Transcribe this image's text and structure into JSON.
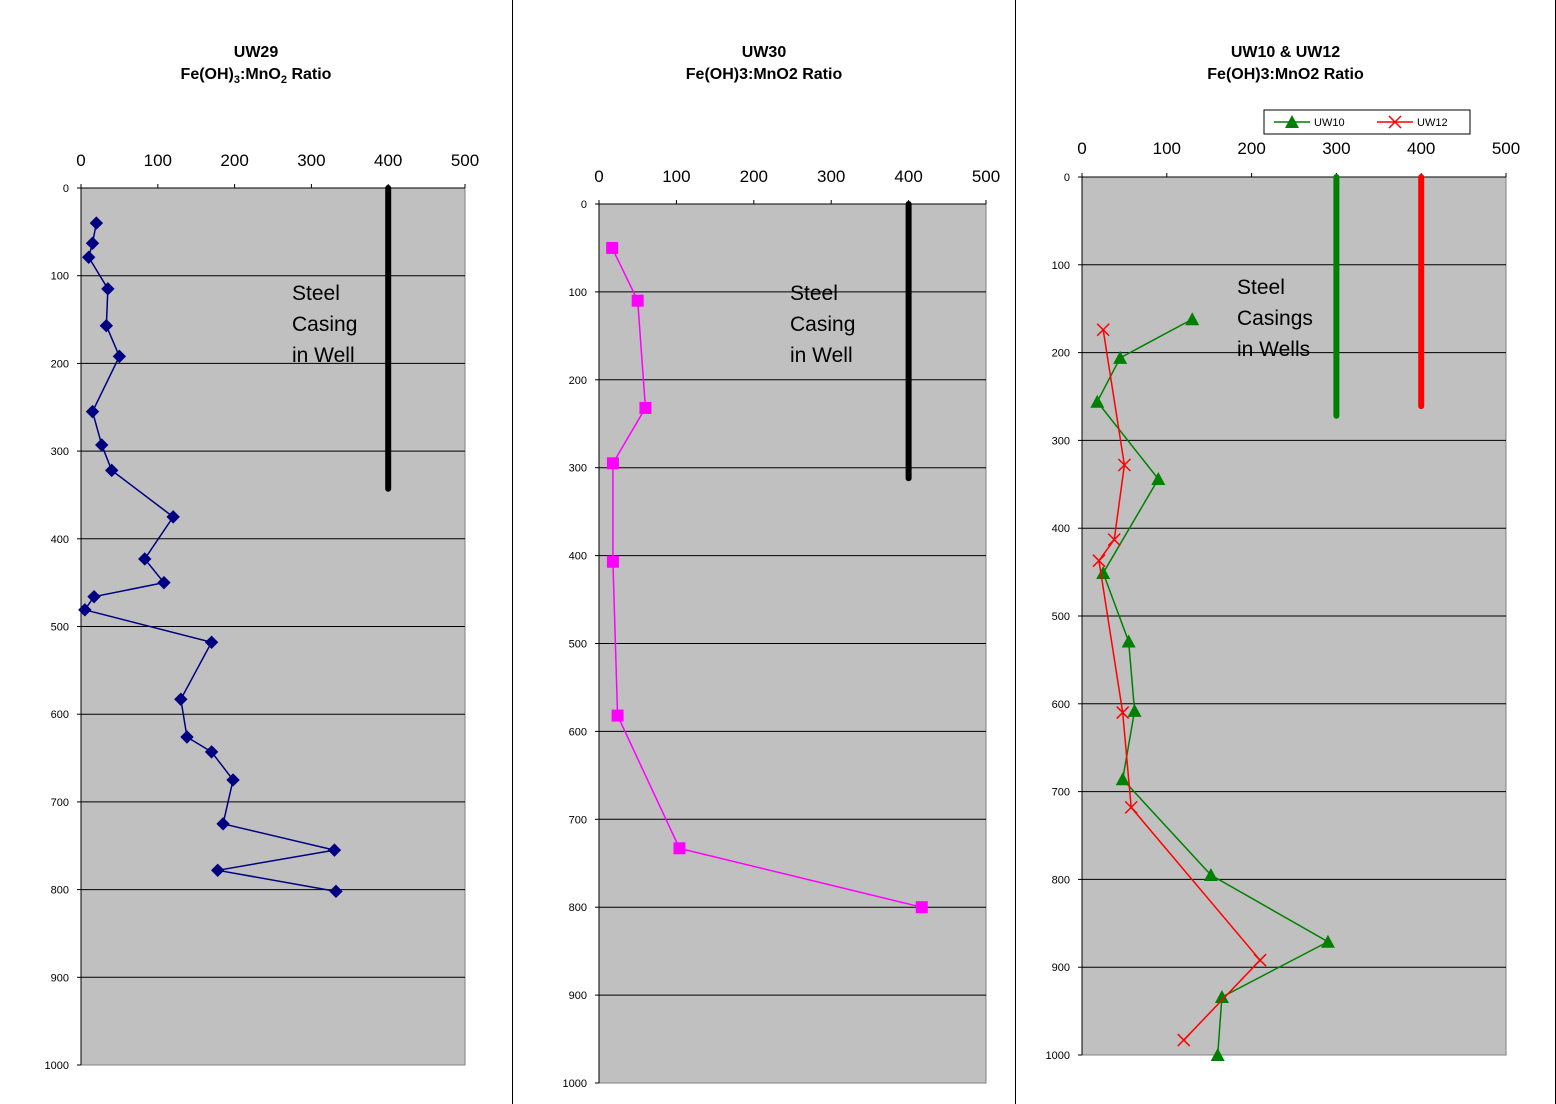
{
  "colors": {
    "plot_bg": "#c0c0c0",
    "uw29": "#000080",
    "uw30": "#ff00ff",
    "uw10": "#008000",
    "uw12": "#ff0000",
    "casing": "#000000"
  },
  "chart_data": [
    {
      "type": "line",
      "title_line1": "UW29",
      "title_line2_parts": [
        "Fe(OH)",
        "3",
        ":MnO",
        "2",
        " Ratio"
      ],
      "xlim": [
        0,
        500
      ],
      "ylim": [
        0,
        1000
      ],
      "x_ticks": [
        "0",
        "100",
        "200",
        "300",
        "400",
        "500"
      ],
      "y_ticks": [
        "0",
        "100",
        "200",
        "300",
        "400",
        "500",
        "600",
        "700",
        "800",
        "900",
        "1000"
      ],
      "y_inverted": true,
      "grid": "horizontal",
      "annotation": [
        "Steel",
        "Casing",
        "in Well"
      ],
      "series": [
        {
          "marker": "diamond",
          "color": "#000080",
          "points": [
            [
              20,
              40
            ],
            [
              15,
              63
            ],
            [
              10,
              79
            ],
            [
              35,
              115
            ],
            [
              33,
              157
            ],
            [
              50,
              192
            ],
            [
              15,
              255
            ],
            [
              27,
              293
            ],
            [
              40,
              322
            ],
            [
              120,
              375
            ],
            [
              83,
              423
            ],
            [
              108,
              450
            ],
            [
              17,
              466
            ],
            [
              5,
              481
            ],
            [
              170,
              518
            ],
            [
              130,
              583
            ],
            [
              138,
              626
            ],
            [
              170,
              643
            ],
            [
              198,
              675
            ],
            [
              185,
              725
            ],
            [
              330,
              755
            ],
            [
              178,
              778
            ],
            [
              332,
              802
            ]
          ]
        }
      ],
      "casing_lines": [
        {
          "x": 400,
          "y_from": 0,
          "y_to": 343,
          "color": "#000000"
        }
      ]
    },
    {
      "type": "line",
      "title_line1": "UW30",
      "title_line2": "Fe(OH)3:MnO2 Ratio",
      "xlim": [
        0,
        500
      ],
      "ylim": [
        0,
        1000
      ],
      "x_ticks": [
        "0",
        "100",
        "200",
        "300",
        "400",
        "500"
      ],
      "y_ticks": [
        "0",
        "100",
        "200",
        "300",
        "400",
        "500",
        "600",
        "700",
        "800",
        "900",
        "1000"
      ],
      "y_inverted": true,
      "grid": "horizontal",
      "annotation": [
        "Steel",
        "Casing",
        "in Well"
      ],
      "series": [
        {
          "marker": "square",
          "color": "#ff00ff",
          "points": [
            [
              17,
              50
            ],
            [
              50,
              110
            ],
            [
              60,
              232
            ],
            [
              18,
              295
            ],
            [
              18,
              407
            ],
            [
              24,
              582
            ],
            [
              104,
              733
            ],
            [
              417,
              800
            ]
          ]
        }
      ],
      "casing_lines": [
        {
          "x": 400,
          "y_from": 0,
          "y_to": 312,
          "color": "#000000"
        }
      ]
    },
    {
      "type": "line",
      "title_line1": "UW10 & UW12",
      "title_line2": "Fe(OH)3:MnO2 Ratio",
      "xlim": [
        0,
        500
      ],
      "ylim": [
        0,
        1000
      ],
      "x_ticks": [
        "0",
        "100",
        "200",
        "300",
        "400",
        "500"
      ],
      "y_ticks": [
        "0",
        "100",
        "200",
        "300",
        "400",
        "500",
        "600",
        "700",
        "800",
        "900",
        "1000"
      ],
      "y_inverted": true,
      "grid": "horizontal",
      "legend_position": "top-right",
      "annotation": [
        "Steel",
        "Casings",
        "in Wells"
      ],
      "series": [
        {
          "name": "UW10",
          "marker": "triangle",
          "color": "#008000",
          "points": [
            [
              130,
              162
            ],
            [
              45,
              206
            ],
            [
              18,
              256
            ],
            [
              90,
              344
            ],
            [
              25,
              451
            ],
            [
              55,
              529
            ],
            [
              62,
              608
            ],
            [
              48,
              686
            ],
            [
              152,
              795
            ],
            [
              290,
              871
            ],
            [
              165,
              934
            ],
            [
              160,
              1000
            ]
          ]
        },
        {
          "name": "UW12",
          "marker": "x",
          "color": "#ff0000",
          "points": [
            [
              25,
              174
            ],
            [
              50,
              328
            ],
            [
              38,
              413
            ],
            [
              20,
              437
            ],
            [
              48,
              610
            ],
            [
              58,
              718
            ],
            [
              210,
              892
            ],
            [
              120,
              983
            ]
          ]
        }
      ],
      "casing_lines": [
        {
          "x": 300,
          "y_from": 0,
          "y_to": 272,
          "color": "#008000"
        },
        {
          "x": 400,
          "y_from": 0,
          "y_to": 261,
          "color": "#ff0000"
        }
      ]
    }
  ]
}
